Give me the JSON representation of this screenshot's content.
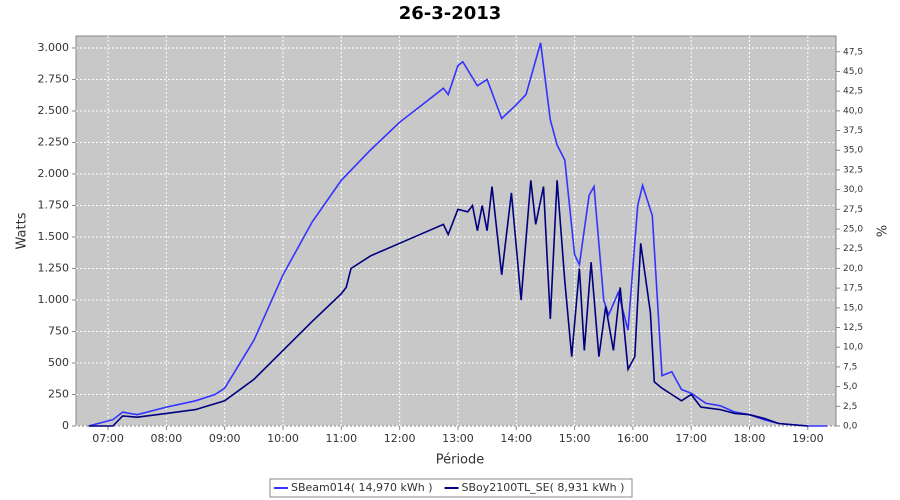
{
  "chart_data": {
    "type": "line",
    "title": "26-3-2013",
    "xlabel": "Période",
    "ylabel": "Watts",
    "y2label": "%",
    "xlim": [
      "06:27",
      "19:29"
    ],
    "xticks": [
      "07:00",
      "08:00",
      "09:00",
      "10:00",
      "11:00",
      "12:00",
      "13:00",
      "14:00",
      "15:00",
      "16:00",
      "17:00",
      "18:00",
      "19:00"
    ],
    "ylim": [
      0,
      3095
    ],
    "yticks": [
      {
        "value": 0,
        "label": "0"
      },
      {
        "value": 250,
        "label": "250"
      },
      {
        "value": 500,
        "label": "500"
      },
      {
        "value": 750,
        "label": "750"
      },
      {
        "value": 1000,
        "label": "1.000"
      },
      {
        "value": 1250,
        "label": "1.250"
      },
      {
        "value": 1500,
        "label": "1.500"
      },
      {
        "value": 1750,
        "label": "1.750"
      },
      {
        "value": 2000,
        "label": "2.000"
      },
      {
        "value": 2250,
        "label": "2.250"
      },
      {
        "value": 2500,
        "label": "2.500"
      },
      {
        "value": 2750,
        "label": "2.750"
      },
      {
        "value": 3000,
        "label": "3.000"
      }
    ],
    "y2lim": [
      0,
      49.5
    ],
    "y2ticks": [
      {
        "value": 0,
        "label": "0,0"
      },
      {
        "value": 2.5,
        "label": "2,5"
      },
      {
        "value": 5,
        "label": "5,0"
      },
      {
        "value": 7.5,
        "label": "7,5"
      },
      {
        "value": 10,
        "label": "10,0"
      },
      {
        "value": 12.5,
        "label": "12,5"
      },
      {
        "value": 15,
        "label": "15,0"
      },
      {
        "value": 17.5,
        "label": "17,5"
      },
      {
        "value": 20,
        "label": "20,0"
      },
      {
        "value": 22.5,
        "label": "22,5"
      },
      {
        "value": 25,
        "label": "25,0"
      },
      {
        "value": 27.5,
        "label": "27,5"
      },
      {
        "value": 30,
        "label": "30,0"
      },
      {
        "value": 32.5,
        "label": "32,5"
      },
      {
        "value": 35,
        "label": "35,0"
      },
      {
        "value": 37.5,
        "label": "37,5"
      },
      {
        "value": 40,
        "label": "40,0"
      },
      {
        "value": 42.5,
        "label": "42,5"
      },
      {
        "value": 45,
        "label": "45,0"
      },
      {
        "value": 47.5,
        "label": "47,5"
      }
    ],
    "grid": true,
    "legend": "bottom",
    "series": [
      {
        "name": "SBeam014( 14,970 kWh )",
        "color": "#3333ff",
        "x": [
          "06:40",
          "07:05",
          "07:15",
          "07:30",
          "08:00",
          "08:30",
          "08:50",
          "09:00",
          "09:30",
          "10:00",
          "10:30",
          "11:00",
          "11:30",
          "12:00",
          "12:30",
          "12:45",
          "12:50",
          "13:00",
          "13:05",
          "13:20",
          "13:30",
          "13:45",
          "14:00",
          "14:10",
          "14:25",
          "14:35",
          "14:42",
          "14:50",
          "15:00",
          "15:05",
          "15:15",
          "15:20",
          "15:30",
          "15:35",
          "15:45",
          "15:55",
          "16:05",
          "16:10",
          "16:20",
          "16:30",
          "16:40",
          "16:50",
          "17:00",
          "17:15",
          "17:30",
          "17:45",
          "18:00",
          "18:15",
          "18:30",
          "19:00",
          "19:20"
        ],
        "values": [
          0,
          50,
          110,
          90,
          150,
          200,
          250,
          300,
          680,
          1200,
          1620,
          1950,
          2190,
          2410,
          2590,
          2680,
          2630,
          2860,
          2890,
          2700,
          2750,
          2440,
          2550,
          2630,
          3040,
          2430,
          2230,
          2110,
          1360,
          1280,
          1830,
          1900,
          1000,
          880,
          1060,
          760,
          1750,
          1910,
          1670,
          400,
          430,
          290,
          260,
          180,
          160,
          110,
          90,
          50,
          20,
          0,
          0
        ]
      },
      {
        "name": "SBoy2100TL_SE( 8,931 kWh )",
        "color": "#00007f",
        "x": [
          "06:40",
          "07:05",
          "07:15",
          "07:30",
          "08:00",
          "08:30",
          "09:00",
          "09:30",
          "10:00",
          "10:30",
          "11:00",
          "11:05",
          "11:10",
          "11:30",
          "12:00",
          "12:30",
          "12:45",
          "12:50",
          "13:00",
          "13:10",
          "13:15",
          "13:20",
          "13:25",
          "13:30",
          "13:35",
          "13:45",
          "13:55",
          "14:05",
          "14:15",
          "14:20",
          "14:28",
          "14:35",
          "14:42",
          "14:50",
          "14:57",
          "15:05",
          "15:10",
          "15:17",
          "15:25",
          "15:32",
          "15:40",
          "15:47",
          "15:55",
          "16:02",
          "16:08",
          "16:18",
          "16:22",
          "16:30",
          "16:40",
          "16:50",
          "17:00",
          "17:10",
          "17:30",
          "17:45",
          "18:00",
          "18:15",
          "18:30",
          "19:00"
        ],
        "values": [
          0,
          0,
          80,
          70,
          100,
          130,
          200,
          370,
          600,
          830,
          1050,
          1100,
          1250,
          1350,
          1450,
          1550,
          1600,
          1520,
          1720,
          1700,
          1750,
          1550,
          1750,
          1550,
          1900,
          1200,
          1850,
          1000,
          1950,
          1600,
          1900,
          850,
          1950,
          1150,
          550,
          1250,
          600,
          1300,
          550,
          950,
          600,
          1100,
          450,
          550,
          1450,
          900,
          350,
          300,
          250,
          200,
          250,
          150,
          130,
          100,
          90,
          60,
          20,
          0
        ]
      }
    ]
  }
}
